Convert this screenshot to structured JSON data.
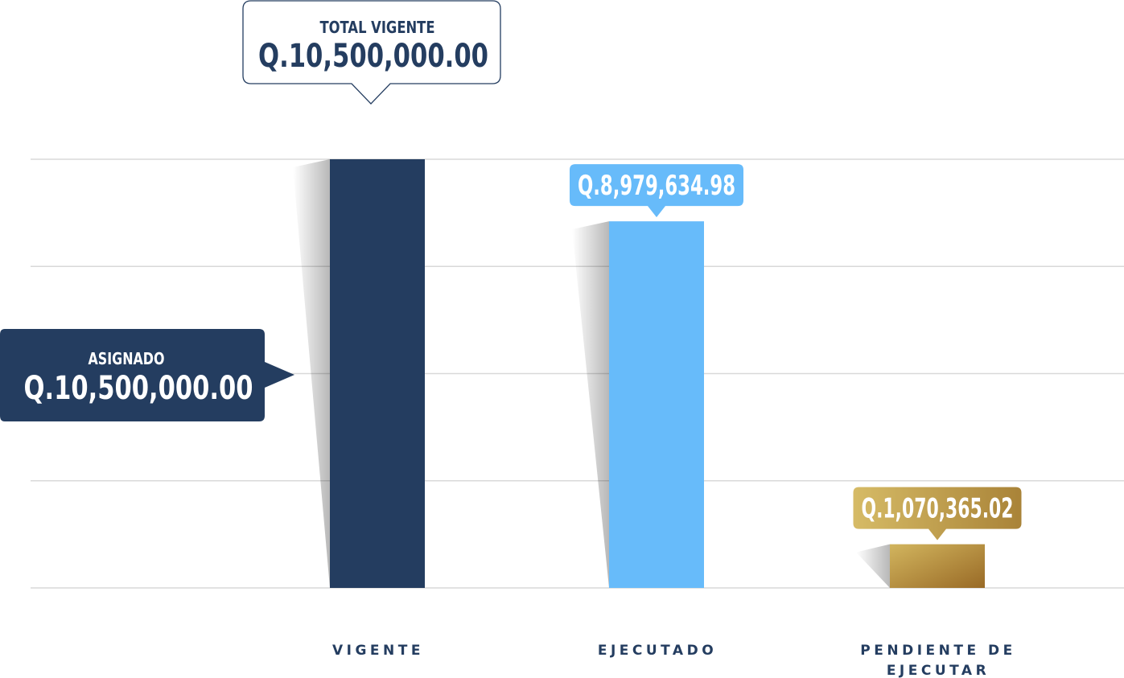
{
  "chart_data": {
    "type": "bar",
    "categories": [
      "VIGENTE",
      "EJECUTADO",
      "PENDIENTE DE EJECUTAR"
    ],
    "values": [
      10500000.0,
      8979634.98,
      1070365.02
    ],
    "value_labels": [
      "Q.10,500,000.00",
      "Q.8,979,634.98",
      "Q.1,070,365.02"
    ],
    "category_lines": [
      [
        "VIGENTE"
      ],
      [
        "EJECUTADO"
      ],
      [
        "PENDIENTE DE",
        "EJECUTAR"
      ]
    ],
    "ylim": [
      0,
      10500000
    ],
    "grid": true,
    "colors": {
      "vigente": "#243d60",
      "ejecutado": "#67bbfa",
      "pendiente_start": "#d2b55e",
      "pendiente_end": "#996a26",
      "label_text": "#243d60",
      "grid": "#d9d9d9"
    }
  },
  "callouts": {
    "total_vigente": {
      "title": "TOTAL VIGENTE",
      "value": "Q.10,500,000.00"
    },
    "asignado": {
      "title": "ASIGNADO",
      "value": "Q.10,500,000.00"
    }
  }
}
